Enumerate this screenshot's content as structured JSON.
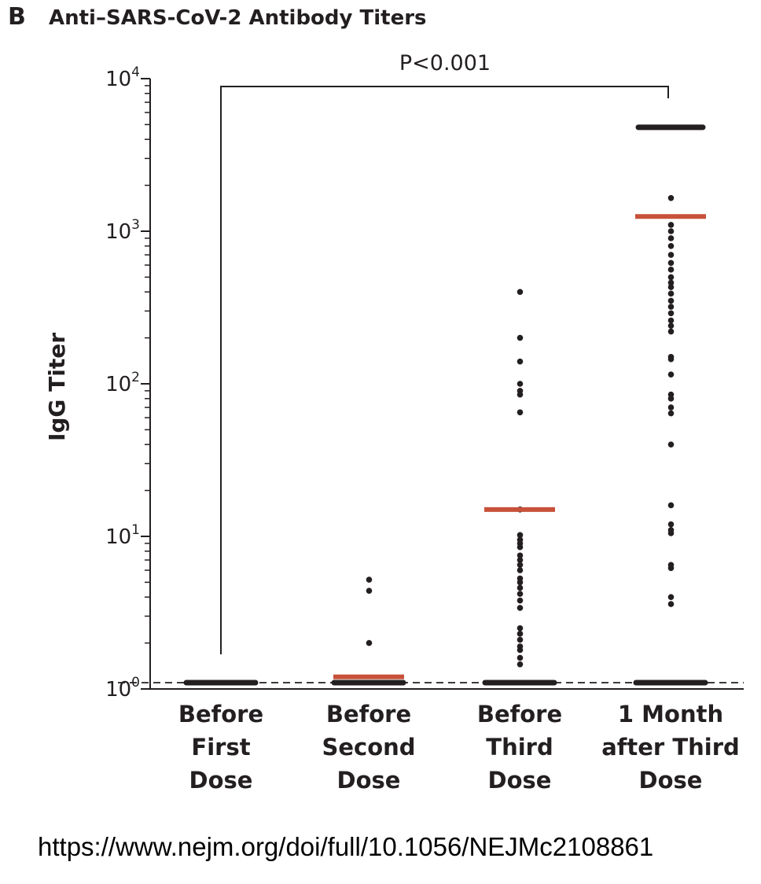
{
  "panel_letter": "B",
  "source_url": "https://www.nejm.org/doi/full/10.1056/NEJMc2108861",
  "colors": {
    "points": "#231f20",
    "median": "#c8513a",
    "axis": "#231f20"
  },
  "chart_data": {
    "type": "scatter",
    "title": "Anti–SARS-CoV-2 Antibody Titers",
    "ylabel": "IgG Titer",
    "xlabel": "",
    "yscale": "log",
    "ylim": [
      1,
      10000
    ],
    "y_ticks": [
      {
        "base": "10",
        "exp": "0",
        "value": 1
      },
      {
        "base": "10",
        "exp": "1",
        "value": 10
      },
      {
        "base": "10",
        "exp": "2",
        "value": 100
      },
      {
        "base": "10",
        "exp": "3",
        "value": 1000
      },
      {
        "base": "10",
        "exp": "4",
        "value": 10000
      }
    ],
    "detection_limit": 1.1,
    "categories": [
      {
        "lines": [
          "Before",
          "First",
          "Dose"
        ]
      },
      {
        "lines": [
          "Before",
          "Second",
          "Dose"
        ]
      },
      {
        "lines": [
          "Before",
          "Third",
          "Dose"
        ]
      },
      {
        "lines": [
          "1 Month",
          "after Third",
          "Dose"
        ]
      }
    ],
    "groups": [
      {
        "median": 1.1,
        "floor_band": true,
        "values": []
      },
      {
        "median": 1.2,
        "floor_band": true,
        "values": [
          5.2,
          4.4,
          2.0
        ]
      },
      {
        "median": 15,
        "floor_band": true,
        "values": [
          400,
          200,
          140,
          100,
          90,
          85,
          65,
          15,
          10.2,
          9.5,
          9.0,
          8.5,
          7.5,
          7.0,
          6.5,
          6.0,
          5.3,
          5.0,
          4.6,
          4.2,
          3.8,
          3.4,
          2.5,
          2.3,
          2.1,
          1.9,
          1.8,
          1.6,
          1.45
        ]
      },
      {
        "median": 1250,
        "floor_band": true,
        "ceiling": 4800,
        "values": [
          1650,
          1100,
          1000,
          900,
          800,
          700,
          620,
          560,
          500,
          460,
          430,
          390,
          350,
          320,
          290,
          260,
          240,
          220,
          150,
          145,
          115,
          85,
          80,
          70,
          64,
          40,
          16,
          12,
          11,
          10.5,
          6.5,
          6.2,
          4.0,
          3.6
        ]
      }
    ],
    "comparison": {
      "label": "P<0.001",
      "from": 0,
      "to": 3
    }
  }
}
